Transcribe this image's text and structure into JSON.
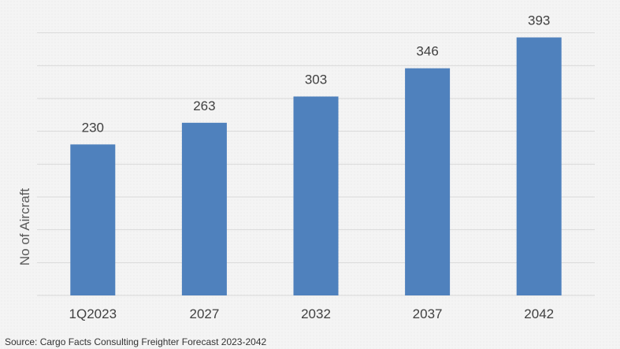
{
  "chart_data": {
    "type": "bar",
    "title": "",
    "xlabel": "",
    "ylabel": "No of Aircraft",
    "categories": [
      "1Q2023",
      "2027",
      "2032",
      "2037",
      "2042"
    ],
    "values": [
      230,
      263,
      303,
      346,
      393
    ],
    "ylim": [
      0,
      450
    ],
    "grid": true,
    "data_labels": true,
    "bar_color": "#4f81bd",
    "grid_color": "#d9d9d9"
  },
  "source_text": "Source: Cargo Facts Consulting Freighter Forecast 2023-2042"
}
